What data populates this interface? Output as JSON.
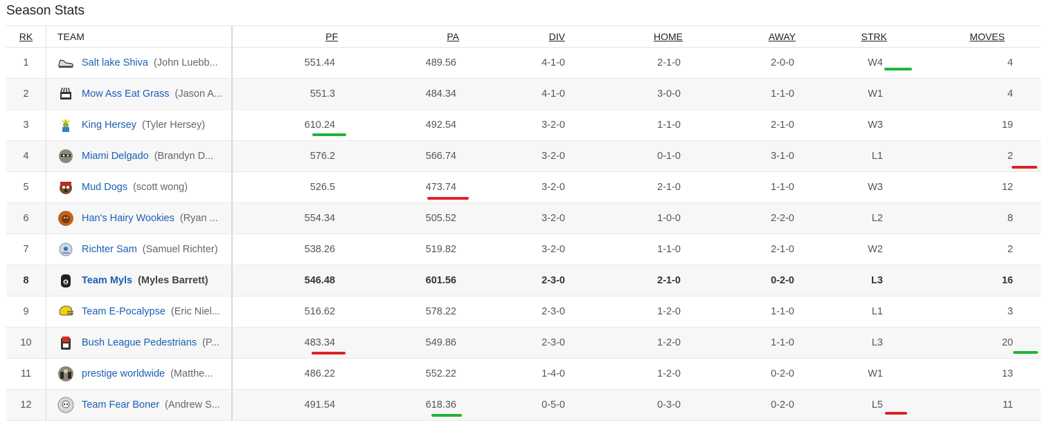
{
  "page": {
    "title": "Season Stats"
  },
  "columns": {
    "rk": "RK",
    "team": "TEAM",
    "pf": "PF",
    "pa": "PA",
    "div": "DIV",
    "home": "HOME",
    "away": "AWAY",
    "strk": "STRK",
    "moves": "MOVES"
  },
  "rows": [
    {
      "rk": "1",
      "team": "Salt lake Shiva",
      "owner": "(John Luebb...",
      "pf": "551.44",
      "pa": "489.56",
      "div": "4-1-0",
      "home": "2-1-0",
      "away": "2-0-0",
      "strk": "W4",
      "moves": "4",
      "logo": "sneaker-icon"
    },
    {
      "rk": "2",
      "team": "Mow Ass Eat Grass",
      "owner": "(Jason A...",
      "pf": "551.3",
      "pa": "484.34",
      "div": "4-1-0",
      "home": "3-0-0",
      "away": "1-1-0",
      "strk": "W1",
      "moves": "4",
      "logo": "lawnmower-icon"
    },
    {
      "rk": "3",
      "team": "King Hersey",
      "owner": "(Tyler Hersey)",
      "pf": "610.24",
      "pa": "492.54",
      "div": "3-2-0",
      "home": "1-1-0",
      "away": "2-1-0",
      "strk": "W3",
      "moves": "19",
      "logo": "king-icon"
    },
    {
      "rk": "4",
      "team": "Miami Delgado",
      "owner": "(Brandyn D...",
      "pf": "576.2",
      "pa": "566.74",
      "div": "3-2-0",
      "home": "0-1-0",
      "away": "3-1-0",
      "strk": "L1",
      "moves": "2",
      "logo": "raccoon-icon"
    },
    {
      "rk": "5",
      "team": "Mud Dogs",
      "owner": "(scott wong)",
      "pf": "526.5",
      "pa": "473.74",
      "div": "3-2-0",
      "home": "2-1-0",
      "away": "1-1-0",
      "strk": "W3",
      "moves": "12",
      "logo": "dog-icon"
    },
    {
      "rk": "6",
      "team": "Han's Hairy Wookies",
      "owner": "(Ryan ...",
      "pf": "554.34",
      "pa": "505.52",
      "div": "3-2-0",
      "home": "1-0-0",
      "away": "2-2-0",
      "strk": "L2",
      "moves": "8",
      "logo": "wookie-icon"
    },
    {
      "rk": "7",
      "team": "Richter Sam",
      "owner": "(Samuel Richter)",
      "pf": "538.26",
      "pa": "519.82",
      "div": "3-2-0",
      "home": "1-1-0",
      "away": "2-1-0",
      "strk": "W2",
      "moves": "2",
      "logo": "robot-icon"
    },
    {
      "rk": "8",
      "team": "Team Myls",
      "owner": "(Myles Barrett)",
      "pf": "546.48",
      "pa": "601.56",
      "div": "2-3-0",
      "home": "2-1-0",
      "away": "0-2-0",
      "strk": "L3",
      "moves": "16",
      "logo": "eight-ball-icon"
    },
    {
      "rk": "9",
      "team": "Team E-Pocalypse",
      "owner": "(Eric Niel...",
      "pf": "516.62",
      "pa": "578.22",
      "div": "2-3-0",
      "home": "1-2-0",
      "away": "1-1-0",
      "strk": "L1",
      "moves": "3",
      "logo": "helmet-icon"
    },
    {
      "rk": "10",
      "team": "Bush League Pedestrians",
      "owner": "(P...",
      "pf": "483.34",
      "pa": "549.86",
      "div": "2-3-0",
      "home": "1-2-0",
      "away": "1-1-0",
      "strk": "L3",
      "moves": "20",
      "logo": "cup-icon"
    },
    {
      "rk": "11",
      "team": "prestige worldwide",
      "owner": "(Matthe...",
      "pf": "486.22",
      "pa": "552.22",
      "div": "1-4-0",
      "home": "1-2-0",
      "away": "0-2-0",
      "strk": "W1",
      "moves": "13",
      "logo": "photo-avatar-icon"
    },
    {
      "rk": "12",
      "team": "Team Fear Boner",
      "owner": "(Andrew S...",
      "pf": "491.54",
      "pa": "618.36",
      "div": "0-5-0",
      "home": "0-3-0",
      "away": "0-2-0",
      "strk": "L5",
      "moves": "11",
      "logo": "skull-icon"
    }
  ],
  "highlight_colors": {
    "green": "#20b43a",
    "red": "#e0202a"
  }
}
